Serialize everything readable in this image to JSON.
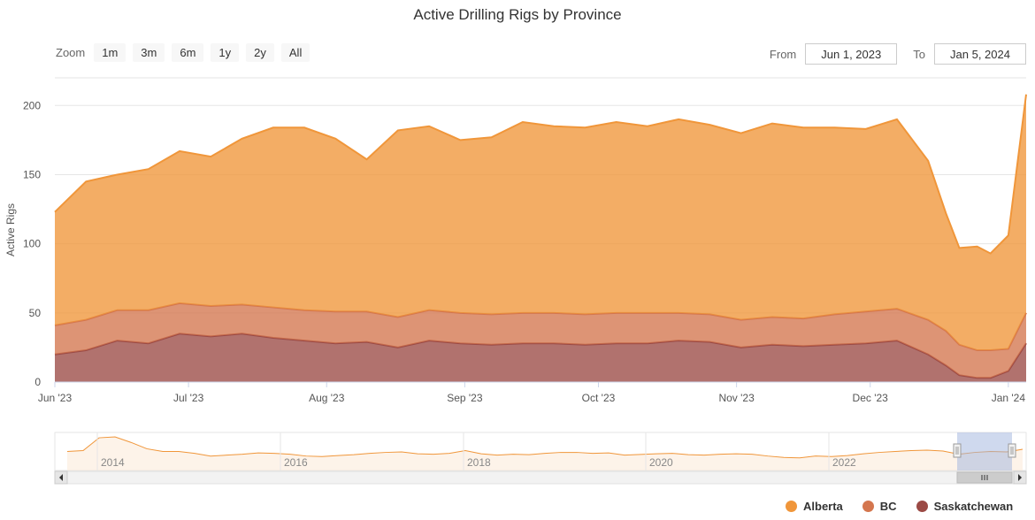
{
  "chart_data": {
    "type": "area",
    "stacked": true,
    "title": "Active Drilling Rigs by Province",
    "ylabel": "Active Rigs",
    "ylim": [
      0,
      220
    ],
    "yticks": [
      0,
      50,
      100,
      150,
      200
    ],
    "xlim": [
      "2023-06-01",
      "2024-01-05"
    ],
    "xticks": [
      {
        "date": "2023-06-01",
        "label": "Jun '23"
      },
      {
        "date": "2023-07-01",
        "label": "Jul '23"
      },
      {
        "date": "2023-08-01",
        "label": "Aug '23"
      },
      {
        "date": "2023-09-01",
        "label": "Sep '23"
      },
      {
        "date": "2023-10-01",
        "label": "Oct '23"
      },
      {
        "date": "2023-11-01",
        "label": "Nov '23"
      },
      {
        "date": "2023-12-01",
        "label": "Dec '23"
      },
      {
        "date": "2024-01-01",
        "label": "Jan '24"
      }
    ],
    "x": [
      "2023-06-01",
      "2023-06-08",
      "2023-06-15",
      "2023-06-22",
      "2023-06-29",
      "2023-07-06",
      "2023-07-13",
      "2023-07-20",
      "2023-07-27",
      "2023-08-03",
      "2023-08-10",
      "2023-08-17",
      "2023-08-24",
      "2023-08-31",
      "2023-09-07",
      "2023-09-14",
      "2023-09-21",
      "2023-09-28",
      "2023-10-05",
      "2023-10-12",
      "2023-10-19",
      "2023-10-26",
      "2023-11-02",
      "2023-11-09",
      "2023-11-16",
      "2023-11-23",
      "2023-11-30",
      "2023-12-07",
      "2023-12-14",
      "2023-12-18",
      "2023-12-21",
      "2023-12-25",
      "2023-12-28",
      "2024-01-01",
      "2024-01-05"
    ],
    "series": [
      {
        "name": "Saskatchewan",
        "color": "#9b4a45",
        "values": [
          20,
          23,
          30,
          28,
          35,
          33,
          35,
          32,
          30,
          28,
          29,
          25,
          30,
          28,
          27,
          28,
          28,
          27,
          28,
          28,
          30,
          29,
          25,
          27,
          26,
          27,
          28,
          30,
          20,
          12,
          5,
          3,
          3,
          8,
          28
        ]
      },
      {
        "name": "BC",
        "color": "#d4764e",
        "values": [
          21,
          22,
          22,
          24,
          22,
          22,
          21,
          22,
          22,
          23,
          22,
          22,
          22,
          22,
          22,
          22,
          22,
          22,
          22,
          22,
          20,
          20,
          20,
          20,
          20,
          22,
          23,
          23,
          25,
          25,
          22,
          20,
          20,
          16,
          22
        ]
      },
      {
        "name": "Alberta",
        "color": "#f0963a",
        "values": [
          82,
          100,
          98,
          102,
          110,
          108,
          120,
          130,
          132,
          125,
          110,
          135,
          133,
          125,
          128,
          138,
          135,
          135,
          138,
          135,
          140,
          137,
          135,
          140,
          138,
          135,
          132,
          137,
          115,
          85,
          70,
          75,
          70,
          82,
          158
        ]
      }
    ],
    "navigator": {
      "tick_labels": [
        "2014",
        "2016",
        "2018",
        "2020",
        "2022"
      ],
      "totals": [
        150,
        160,
        300,
        310,
        250,
        180,
        150,
        150,
        130,
        100,
        110,
        120,
        135,
        130,
        120,
        100,
        95,
        105,
        115,
        130,
        140,
        145,
        125,
        120,
        130,
        160,
        125,
        110,
        120,
        115,
        130,
        140,
        140,
        130,
        135,
        110,
        118,
        125,
        130,
        115,
        110,
        120,
        125,
        120,
        100,
        85,
        80,
        100,
        95,
        105,
        125,
        140,
        150,
        160,
        165,
        155,
        120,
        140,
        150,
        145,
        175
      ]
    },
    "legend": {
      "position": "bottom-right",
      "items": [
        "Alberta",
        "BC",
        "Saskatchewan"
      ]
    }
  },
  "zoom": {
    "label": "Zoom",
    "buttons": [
      "1m",
      "3m",
      "6m",
      "1y",
      "2y",
      "All"
    ]
  },
  "range": {
    "from_label": "From",
    "from_value": "Jun 1, 2023",
    "to_label": "To",
    "to_value": "Jan 5, 2024"
  }
}
